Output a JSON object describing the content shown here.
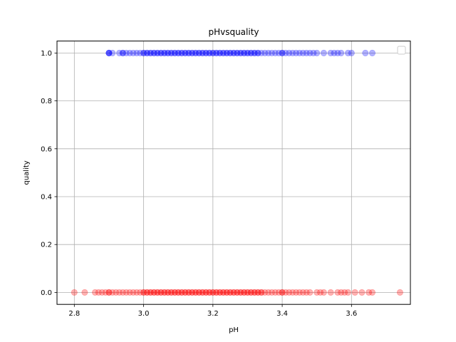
{
  "chart_data": {
    "type": "scatter",
    "title": "pHvsquality",
    "xlabel": "pH",
    "ylabel": "quality",
    "xlim": [
      2.75,
      3.77
    ],
    "ylim": [
      -0.05,
      1.05
    ],
    "x_ticks": [
      "2.8",
      "3.0",
      "3.2",
      "3.4",
      "3.6"
    ],
    "x_tick_values": [
      2.8,
      3.0,
      3.2,
      3.4,
      3.6
    ],
    "y_ticks": [
      "0.0",
      "0.2",
      "0.4",
      "0.6",
      "0.8",
      "1.0"
    ],
    "y_tick_values": [
      0.0,
      0.2,
      0.4,
      0.6,
      0.8,
      1.0
    ],
    "grid": true,
    "legend": "top-right (empty)",
    "series": [
      {
        "color": "#0000ff",
        "alpha": 0.3,
        "y": 1,
        "x": [
          2.9,
          2.9,
          2.9,
          2.91,
          2.93,
          2.94,
          2.94,
          2.95,
          2.96,
          2.97,
          2.98,
          2.99,
          3.0,
          3.0,
          3.01,
          3.01,
          3.02,
          3.02,
          3.03,
          3.03,
          3.04,
          3.04,
          3.05,
          3.05,
          3.06,
          3.06,
          3.07,
          3.07,
          3.08,
          3.08,
          3.09,
          3.09,
          3.1,
          3.1,
          3.11,
          3.11,
          3.12,
          3.12,
          3.13,
          3.13,
          3.14,
          3.14,
          3.15,
          3.15,
          3.16,
          3.16,
          3.17,
          3.17,
          3.18,
          3.18,
          3.19,
          3.19,
          3.2,
          3.2,
          3.21,
          3.21,
          3.22,
          3.22,
          3.23,
          3.23,
          3.24,
          3.24,
          3.25,
          3.25,
          3.26,
          3.26,
          3.27,
          3.27,
          3.28,
          3.28,
          3.29,
          3.29,
          3.3,
          3.3,
          3.31,
          3.31,
          3.32,
          3.32,
          3.33,
          3.33,
          3.34,
          3.35,
          3.36,
          3.37,
          3.38,
          3.39,
          3.4,
          3.4,
          3.41,
          3.42,
          3.43,
          3.44,
          3.45,
          3.46,
          3.47,
          3.48,
          3.49,
          3.5,
          3.52,
          3.54,
          3.55,
          3.56,
          3.57,
          3.59,
          3.6,
          3.64,
          3.66
        ]
      },
      {
        "color": "#ff0000",
        "alpha": 0.3,
        "y": 0,
        "x": [
          2.8,
          2.83,
          2.86,
          2.87,
          2.88,
          2.89,
          2.9,
          2.9,
          2.91,
          2.92,
          2.93,
          2.94,
          2.95,
          2.96,
          2.97,
          2.98,
          2.99,
          3.0,
          3.0,
          3.01,
          3.01,
          3.02,
          3.02,
          3.03,
          3.03,
          3.04,
          3.04,
          3.05,
          3.05,
          3.06,
          3.06,
          3.07,
          3.07,
          3.08,
          3.08,
          3.09,
          3.09,
          3.1,
          3.1,
          3.11,
          3.11,
          3.12,
          3.12,
          3.13,
          3.13,
          3.14,
          3.14,
          3.15,
          3.15,
          3.16,
          3.16,
          3.17,
          3.17,
          3.18,
          3.18,
          3.19,
          3.19,
          3.2,
          3.2,
          3.21,
          3.21,
          3.22,
          3.22,
          3.23,
          3.23,
          3.24,
          3.24,
          3.25,
          3.25,
          3.26,
          3.26,
          3.27,
          3.27,
          3.28,
          3.28,
          3.29,
          3.29,
          3.3,
          3.3,
          3.31,
          3.31,
          3.32,
          3.32,
          3.33,
          3.33,
          3.34,
          3.34,
          3.35,
          3.36,
          3.37,
          3.38,
          3.39,
          3.4,
          3.4,
          3.41,
          3.42,
          3.43,
          3.44,
          3.45,
          3.46,
          3.47,
          3.48,
          3.5,
          3.51,
          3.52,
          3.54,
          3.56,
          3.57,
          3.58,
          3.59,
          3.61,
          3.63,
          3.65,
          3.66,
          3.74
        ]
      }
    ]
  }
}
